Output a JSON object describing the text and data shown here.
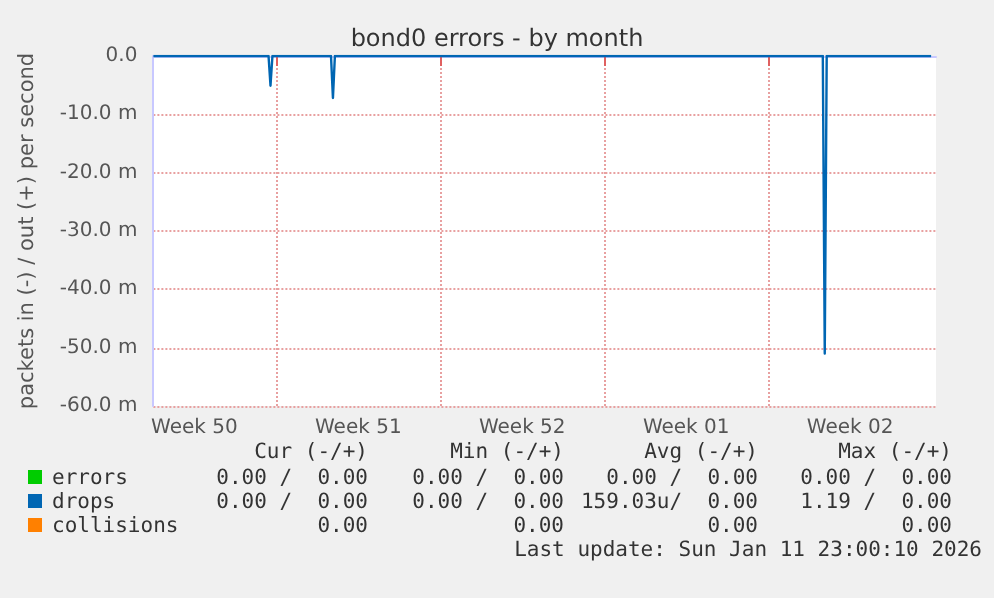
{
  "chart_data": {
    "type": "line",
    "title": "bond0 errors - by month",
    "ylabel": "packets in (-) / out (+) per second",
    "xlim": [
      "2025-12-09T18:00",
      "2026-01-12T04:00"
    ],
    "xticks": [
      {
        "value": "2025-12-11T12:00",
        "label": "Week 50"
      },
      {
        "value": "2025-12-15T00:00",
        "label": null
      },
      {
        "value": "2025-12-18T12:00",
        "label": "Week 51"
      },
      {
        "value": "2025-12-22T00:00",
        "label": null
      },
      {
        "value": "2025-12-25T12:00",
        "label": "Week 52"
      },
      {
        "value": "2025-12-29T00:00",
        "label": null
      },
      {
        "value": "2026-01-01T12:00",
        "label": "Week 01"
      },
      {
        "value": "2026-01-05T00:00",
        "label": null
      },
      {
        "value": "2026-01-08T12:00",
        "label": "Week 02"
      }
    ],
    "ylim": [
      -60,
      0
    ],
    "yticks": [
      {
        "value": -60,
        "label": "-60.0 m"
      },
      {
        "value": -50,
        "label": "-50.0 m"
      },
      {
        "value": -40,
        "label": "-40.0 m"
      },
      {
        "value": -30,
        "label": "-30.0 m"
      },
      {
        "value": -20,
        "label": "-20.0 m"
      },
      {
        "value": -10,
        "label": "-10.0 m"
      },
      {
        "value": 0,
        "label": "0.0"
      }
    ],
    "grid": true,
    "legend": "bottom left",
    "marker": "none",
    "line_style": "solid",
    "series": [
      {
        "name": "errors",
        "color": "#00cc00"
      },
      {
        "name": "drops",
        "color": "#0066b3",
        "x": [
          "2025-12-09T18:00",
          "2025-12-14T16:00",
          "2025-12-14T18:00",
          "2025-12-14T20:00",
          "2025-12-17T08:00",
          "2025-12-17T10:00",
          "2025-12-17T12:00",
          "2026-01-07T08:00",
          "2026-01-07T10:00",
          "2026-01-07T12:00",
          "2026-01-11T23:00"
        ],
        "values": [
          0,
          0,
          -5.1,
          0,
          0,
          -7.2,
          0,
          0,
          -51,
          0,
          0
        ]
      },
      {
        "name": "collisions",
        "color": "#ff8000"
      }
    ],
    "annotations": [
      "Cur (-/+)",
      "Min (-/+)",
      "Avg (-/+)",
      "Max (-/+)",
      "0.00 /  0.00",
      "0.00 /  0.00",
      "0.00 /  0.00",
      "0.00 /  0.00",
      "0.00 /  0.00",
      "0.00 /  0.00",
      "159.03u/  0.00",
      "1.19 /  0.00",
      "0.00",
      "0.00",
      "0.00",
      "0.00",
      "Last update: Sun Jan 11 23:00:10 2026"
    ]
  }
}
